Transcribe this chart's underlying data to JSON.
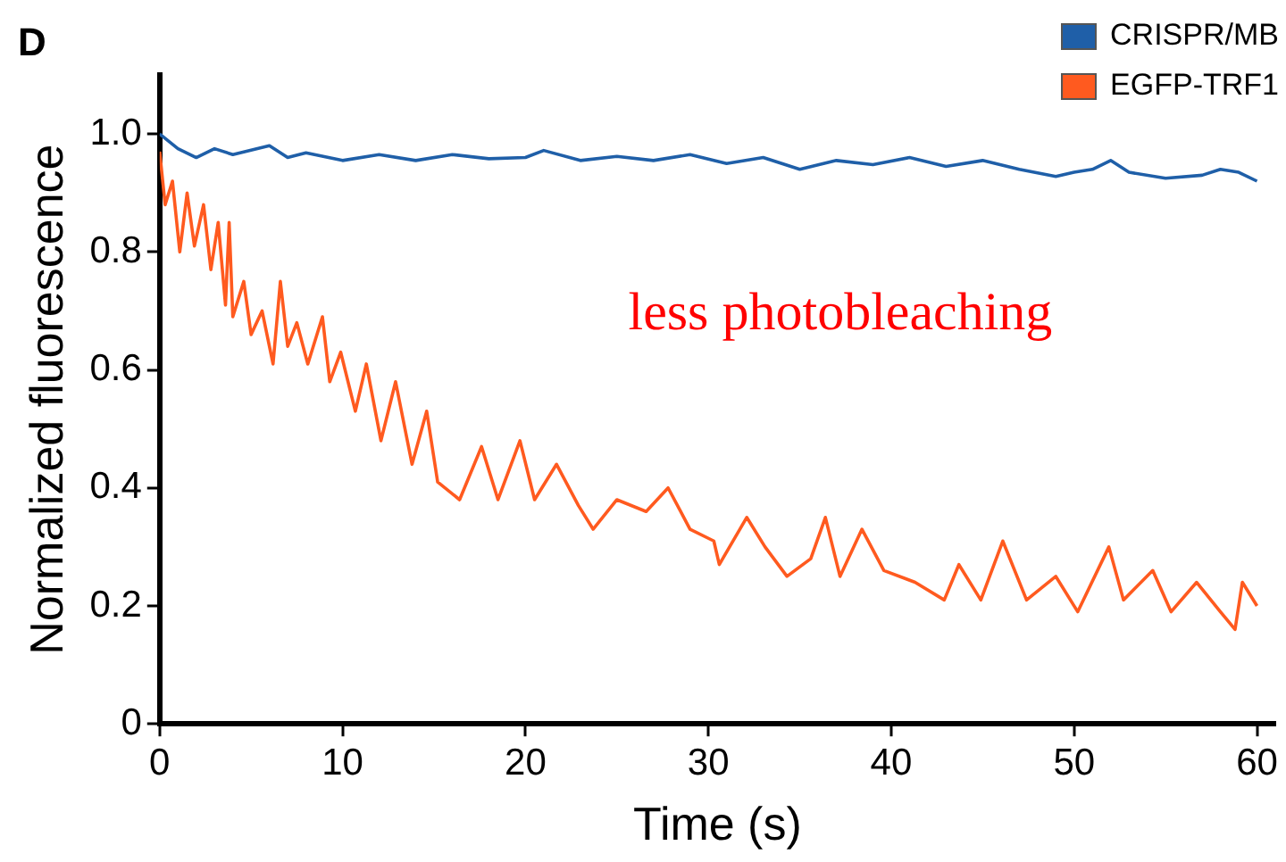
{
  "chart_data": {
    "type": "line",
    "title": "D",
    "xlabel": "Time (s)",
    "ylabel": "Normalized fluorescence",
    "annotations": [
      "less photobleaching"
    ],
    "xlim": [
      0,
      61
    ],
    "ylim": [
      0,
      1.1
    ],
    "xticks": [
      0,
      10,
      20,
      30,
      40,
      50,
      60
    ],
    "yticks": [
      0,
      {
        "value": 0.2,
        "label": "0.2"
      },
      {
        "value": 0.4,
        "label": "0.4"
      },
      {
        "value": 0.6,
        "label": "0.6"
      },
      {
        "value": 0.8,
        "label": "0.8"
      },
      {
        "value": 1,
        "label": "1.0"
      }
    ],
    "grid": false,
    "legend": "top right",
    "marker": "none",
    "line_style": "solid",
    "series": [
      {
        "name": "CRISPR/MB",
        "color": "#1f5fa8",
        "x": [
          0,
          1,
          2,
          3,
          4,
          6,
          7,
          8,
          10,
          12,
          14,
          16,
          18,
          20,
          21,
          23,
          25,
          27,
          29,
          31,
          33,
          35,
          37,
          39,
          41,
          43,
          45,
          47,
          49,
          50,
          51,
          52,
          53,
          55,
          57,
          58,
          59,
          60
        ],
        "values": [
          1.0,
          0.975,
          0.96,
          0.975,
          0.965,
          0.98,
          0.96,
          0.968,
          0.955,
          0.965,
          0.955,
          0.965,
          0.958,
          0.96,
          0.972,
          0.955,
          0.962,
          0.955,
          0.965,
          0.95,
          0.96,
          0.94,
          0.955,
          0.948,
          0.96,
          0.945,
          0.955,
          0.94,
          0.928,
          0.935,
          0.94,
          0.955,
          0.935,
          0.925,
          0.93,
          0.94,
          0.935,
          0.92
        ]
      },
      {
        "name": "EGFP-TRF1",
        "color": "#ff5a1f",
        "x": [
          0,
          0.3,
          0.7,
          1.1,
          1.5,
          1.9,
          2.4,
          2.8,
          3.2,
          3.6,
          3.8,
          4.0,
          4.6,
          5.0,
          5.6,
          6.2,
          6.6,
          7.0,
          7.5,
          8.1,
          8.9,
          9.3,
          9.9,
          10.7,
          11.3,
          12.1,
          12.9,
          13.8,
          14.6,
          15.2,
          16.4,
          17.6,
          18.5,
          19.7,
          20.5,
          21.7,
          22.9,
          23.7,
          25.0,
          26.6,
          27.8,
          29.0,
          30.3,
          30.6,
          32.1,
          33.1,
          34.3,
          35.6,
          36.4,
          37.2,
          38.4,
          39.6,
          41.3,
          42.9,
          43.7,
          44.9,
          46.1,
          47.4,
          49.0,
          50.2,
          51.9,
          52.7,
          54.3,
          55.3,
          56.7,
          58.0,
          58.8,
          59.2,
          60
        ],
        "values": [
          0.97,
          0.88,
          0.92,
          0.8,
          0.9,
          0.81,
          0.88,
          0.77,
          0.85,
          0.71,
          0.85,
          0.69,
          0.75,
          0.66,
          0.7,
          0.61,
          0.75,
          0.64,
          0.68,
          0.61,
          0.69,
          0.58,
          0.63,
          0.53,
          0.61,
          0.48,
          0.58,
          0.44,
          0.53,
          0.41,
          0.38,
          0.47,
          0.38,
          0.48,
          0.38,
          0.44,
          0.37,
          0.33,
          0.38,
          0.36,
          0.4,
          0.33,
          0.31,
          0.27,
          0.35,
          0.3,
          0.25,
          0.28,
          0.35,
          0.25,
          0.33,
          0.26,
          0.24,
          0.21,
          0.27,
          0.21,
          0.31,
          0.21,
          0.25,
          0.19,
          0.3,
          0.21,
          0.26,
          0.19,
          0.24,
          0.19,
          0.16,
          0.24,
          0.2
        ]
      }
    ]
  }
}
